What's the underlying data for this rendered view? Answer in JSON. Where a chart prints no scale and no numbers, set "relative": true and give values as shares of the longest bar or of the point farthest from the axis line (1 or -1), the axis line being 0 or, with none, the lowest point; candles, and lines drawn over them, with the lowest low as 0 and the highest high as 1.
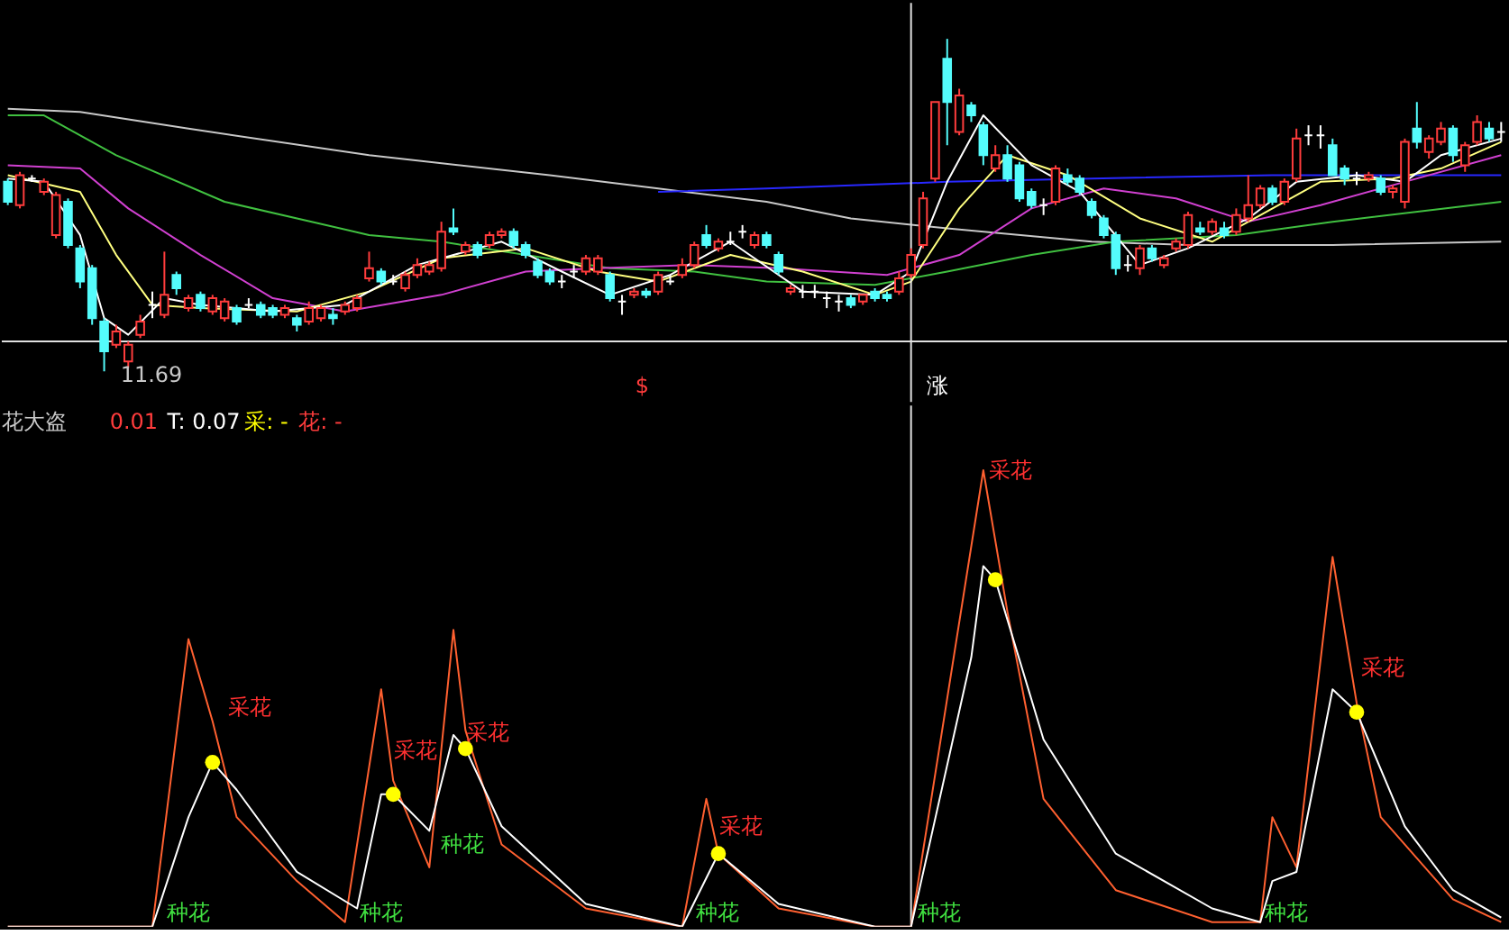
{
  "chart_data": [
    {
      "type": "candlestick",
      "relative": true,
      "categories": [
        null,
        null,
        null,
        null,
        null,
        null,
        null,
        null,
        null,
        null,
        null,
        null,
        null,
        null,
        null,
        null,
        null,
        null,
        null,
        null,
        null,
        null,
        null,
        null,
        null,
        null,
        null,
        null,
        null,
        null,
        null,
        null,
        null,
        null,
        null,
        null,
        null,
        null,
        null,
        null,
        null,
        null,
        null,
        null,
        null,
        null,
        null,
        null,
        null,
        null,
        null,
        null,
        null,
        null,
        null,
        null,
        null,
        null,
        null,
        null,
        null,
        null,
        null,
        null,
        null,
        null,
        null,
        null,
        null,
        null,
        null,
        null,
        null,
        null,
        null,
        null,
        null,
        null,
        null,
        null,
        null,
        null,
        null,
        null,
        null,
        null,
        null,
        null,
        null,
        null,
        null,
        null,
        null,
        null,
        null,
        null,
        null,
        null,
        null,
        null,
        null,
        null,
        null,
        null,
        null,
        null,
        null,
        null,
        null,
        null,
        null,
        null,
        null,
        null,
        null,
        null,
        null,
        null,
        null,
        null,
        null,
        null,
        null,
        null,
        null
      ],
      "ohlc": [
        [
          0.57,
          0.58,
          0.5,
          0.51
        ],
        [
          0.5,
          0.6,
          0.49,
          0.59
        ],
        [
          0.58,
          0.59,
          0.57,
          0.58
        ],
        [
          0.54,
          0.58,
          0.53,
          0.57
        ],
        [
          0.41,
          0.54,
          0.4,
          0.53
        ],
        [
          0.51,
          0.52,
          0.37,
          0.38
        ],
        [
          0.37,
          0.38,
          0.25,
          0.27
        ],
        [
          0.31,
          0.32,
          0.14,
          0.16
        ],
        [
          0.15,
          0.16,
          0.0,
          0.06
        ],
        [
          0.08,
          0.14,
          0.07,
          0.12
        ],
        [
          0.03,
          0.09,
          0.01,
          0.08
        ],
        [
          0.11,
          0.17,
          0.1,
          0.15
        ],
        [
          0.2,
          0.24,
          0.16,
          0.2
        ],
        [
          0.17,
          0.36,
          0.16,
          0.23
        ],
        [
          0.29,
          0.3,
          0.23,
          0.25
        ],
        [
          0.19,
          0.23,
          0.18,
          0.22
        ],
        [
          0.23,
          0.24,
          0.18,
          0.19
        ],
        [
          0.18,
          0.23,
          0.17,
          0.22
        ],
        [
          0.16,
          0.22,
          0.15,
          0.21
        ],
        [
          0.19,
          0.2,
          0.14,
          0.15
        ],
        [
          0.2,
          0.22,
          0.19,
          0.2
        ],
        [
          0.2,
          0.21,
          0.16,
          0.17
        ],
        [
          0.19,
          0.2,
          0.16,
          0.17
        ],
        [
          0.17,
          0.2,
          0.16,
          0.19
        ],
        [
          0.16,
          0.17,
          0.12,
          0.14
        ],
        [
          0.15,
          0.21,
          0.14,
          0.19
        ],
        [
          0.16,
          0.2,
          0.15,
          0.19
        ],
        [
          0.17,
          0.19,
          0.14,
          0.16
        ],
        [
          0.18,
          0.21,
          0.17,
          0.2
        ],
        [
          0.19,
          0.23,
          0.18,
          0.22
        ],
        [
          0.28,
          0.36,
          0.27,
          0.31
        ],
        [
          0.3,
          0.31,
          0.26,
          0.27
        ],
        [
          0.27,
          0.29,
          0.26,
          0.27
        ],
        [
          0.25,
          0.3,
          0.24,
          0.29
        ],
        [
          0.29,
          0.34,
          0.28,
          0.32
        ],
        [
          0.3,
          0.33,
          0.29,
          0.32
        ],
        [
          0.31,
          0.45,
          0.3,
          0.42
        ],
        [
          0.43,
          0.49,
          0.41,
          0.42
        ],
        [
          0.36,
          0.39,
          0.35,
          0.38
        ],
        [
          0.38,
          0.39,
          0.34,
          0.35
        ],
        [
          0.38,
          0.42,
          0.37,
          0.41
        ],
        [
          0.41,
          0.43,
          0.4,
          0.42
        ],
        [
          0.42,
          0.43,
          0.37,
          0.38
        ],
        [
          0.38,
          0.39,
          0.34,
          0.35
        ],
        [
          0.33,
          0.34,
          0.28,
          0.29
        ],
        [
          0.3,
          0.31,
          0.26,
          0.27
        ],
        [
          0.27,
          0.29,
          0.25,
          0.27
        ],
        [
          0.3,
          0.32,
          0.28,
          0.3
        ],
        [
          0.3,
          0.35,
          0.29,
          0.34
        ],
        [
          0.3,
          0.35,
          0.29,
          0.34
        ],
        [
          0.29,
          0.3,
          0.21,
          0.22
        ],
        [
          0.21,
          0.23,
          0.17,
          0.21
        ],
        [
          0.23,
          0.25,
          0.22,
          0.24
        ],
        [
          0.24,
          0.25,
          0.22,
          0.23
        ],
        [
          0.24,
          0.3,
          0.23,
          0.29
        ],
        [
          0.27,
          0.29,
          0.26,
          0.27
        ],
        [
          0.29,
          0.34,
          0.28,
          0.32
        ],
        [
          0.32,
          0.39,
          0.31,
          0.38
        ],
        [
          0.41,
          0.44,
          0.37,
          0.38
        ],
        [
          0.37,
          0.4,
          0.36,
          0.39
        ],
        [
          0.39,
          0.42,
          0.38,
          0.39
        ],
        [
          0.42,
          0.44,
          0.4,
          0.42
        ],
        [
          0.38,
          0.42,
          0.37,
          0.41
        ],
        [
          0.41,
          0.42,
          0.37,
          0.38
        ],
        [
          0.35,
          0.36,
          0.29,
          0.3
        ],
        [
          0.24,
          0.26,
          0.23,
          0.25
        ],
        [
          0.24,
          0.26,
          0.22,
          0.24
        ],
        [
          0.24,
          0.26,
          0.22,
          0.24
        ],
        [
          0.22,
          0.24,
          0.19,
          0.22
        ],
        [
          0.21,
          0.23,
          0.18,
          0.21
        ],
        [
          0.22,
          0.23,
          0.19,
          0.2
        ],
        [
          0.21,
          0.23,
          0.2,
          0.23
        ],
        [
          0.24,
          0.25,
          0.21,
          0.22
        ],
        [
          0.23,
          0.24,
          0.21,
          0.22
        ],
        [
          0.24,
          0.3,
          0.23,
          0.28
        ],
        [
          0.29,
          0.37,
          0.28,
          0.35
        ],
        [
          0.38,
          0.54,
          0.37,
          0.52
        ],
        [
          0.58,
          0.81,
          0.57,
          0.81
        ],
        [
          0.94,
          1.0,
          0.68,
          0.81
        ],
        [
          0.72,
          0.85,
          0.71,
          0.83
        ],
        [
          0.8,
          0.81,
          0.75,
          0.77
        ],
        [
          0.74,
          0.75,
          0.62,
          0.65
        ],
        [
          0.61,
          0.68,
          0.6,
          0.65
        ],
        [
          0.65,
          0.68,
          0.57,
          0.58
        ],
        [
          0.62,
          0.63,
          0.51,
          0.52
        ],
        [
          0.54,
          0.55,
          0.49,
          0.5
        ],
        [
          0.5,
          0.52,
          0.47,
          0.5
        ],
        [
          0.51,
          0.62,
          0.5,
          0.61
        ],
        [
          0.59,
          0.61,
          0.56,
          0.57
        ],
        [
          0.58,
          0.59,
          0.53,
          0.54
        ],
        [
          0.51,
          0.52,
          0.46,
          0.47
        ],
        [
          0.46,
          0.47,
          0.4,
          0.41
        ],
        [
          0.41,
          0.42,
          0.29,
          0.31
        ],
        [
          0.32,
          0.35,
          0.3,
          0.32
        ],
        [
          0.31,
          0.38,
          0.29,
          0.37
        ],
        [
          0.37,
          0.38,
          0.33,
          0.34
        ],
        [
          0.32,
          0.35,
          0.31,
          0.34
        ],
        [
          0.37,
          0.4,
          0.36,
          0.39
        ],
        [
          0.38,
          0.48,
          0.37,
          0.47
        ],
        [
          0.43,
          0.45,
          0.41,
          0.42
        ],
        [
          0.42,
          0.46,
          0.41,
          0.45
        ],
        [
          0.43,
          0.45,
          0.4,
          0.41
        ],
        [
          0.42,
          0.49,
          0.41,
          0.47
        ],
        [
          0.46,
          0.59,
          0.45,
          0.5
        ],
        [
          0.5,
          0.56,
          0.49,
          0.55
        ],
        [
          0.55,
          0.56,
          0.5,
          0.51
        ],
        [
          0.51,
          0.58,
          0.5,
          0.57
        ],
        [
          0.58,
          0.73,
          0.57,
          0.7
        ],
        [
          0.71,
          0.74,
          0.68,
          0.71
        ],
        [
          0.71,
          0.74,
          0.67,
          0.71
        ],
        [
          0.68,
          0.7,
          0.59,
          0.59
        ],
        [
          0.61,
          0.62,
          0.56,
          0.58
        ],
        [
          0.58,
          0.6,
          0.56,
          0.58
        ],
        [
          0.58,
          0.6,
          0.57,
          0.59
        ],
        [
          0.58,
          0.59,
          0.53,
          0.54
        ],
        [
          0.54,
          0.56,
          0.52,
          0.55
        ],
        [
          0.51,
          0.7,
          0.49,
          0.69
        ],
        [
          0.73,
          0.81,
          0.67,
          0.69
        ],
        [
          0.66,
          0.71,
          0.64,
          0.7
        ],
        [
          0.69,
          0.75,
          0.68,
          0.73
        ],
        [
          0.73,
          0.74,
          0.63,
          0.65
        ],
        [
          0.62,
          0.69,
          0.6,
          0.68
        ],
        [
          0.69,
          0.77,
          0.68,
          0.75
        ],
        [
          0.73,
          0.75,
          0.69,
          0.7
        ],
        [
          0.72,
          0.75,
          0.69,
          0.72
        ]
      ],
      "colors": [
        "#54fcfc",
        "#ff3c3c",
        "#ffffff",
        "#ff3c3c",
        "#ff3c3c",
        "#54fcfc",
        "#54fcfc",
        "#54fcfc",
        "#54fcfc",
        "#ff3c3c",
        "#ff3c3c",
        "#ff3c3c",
        "#ffffff",
        "#ff3c3c",
        "#54fcfc",
        "#ff3c3c",
        "#54fcfc",
        "#ff3c3c",
        "#ff3c3c",
        "#54fcfc",
        "#ffffff",
        "#54fcfc",
        "#54fcfc",
        "#ff3c3c",
        "#54fcfc",
        "#ff3c3c",
        "#ff3c3c",
        "#54fcfc",
        "#ff3c3c",
        "#ff3c3c",
        "#ff3c3c",
        "#54fcfc",
        "#ffffff",
        "#ff3c3c",
        "#ff3c3c",
        "#ff3c3c",
        "#ff3c3c",
        "#54fcfc",
        "#ff3c3c",
        "#54fcfc",
        "#ff3c3c",
        "#ff3c3c",
        "#54fcfc",
        "#54fcfc",
        "#54fcfc",
        "#54fcfc",
        "#ffffff",
        "#ffffff",
        "#ff3c3c",
        "#ff3c3c",
        "#54fcfc",
        "#ffffff",
        "#ff3c3c",
        "#54fcfc",
        "#ff3c3c",
        "#ffffff",
        "#ff3c3c",
        "#ff3c3c",
        "#54fcfc",
        "#ff3c3c",
        "#ffffff",
        "#ffffff",
        "#ff3c3c",
        "#54fcfc",
        "#54fcfc",
        "#ff3c3c",
        "#ffffff",
        "#ffffff",
        "#ffffff",
        "#ffffff",
        "#54fcfc",
        "#ff3c3c",
        "#54fcfc",
        "#54fcfc",
        "#ff3c3c",
        "#ff3c3c",
        "#ff3c3c",
        "#ff3c3c",
        "#54fcfc",
        "#ff3c3c",
        "#54fcfc",
        "#54fcfc",
        "#ff3c3c",
        "#54fcfc",
        "#54fcfc",
        "#54fcfc",
        "#ffffff",
        "#ff3c3c",
        "#54fcfc",
        "#54fcfc",
        "#54fcfc",
        "#54fcfc",
        "#54fcfc",
        "#ffffff",
        "#ff3c3c",
        "#54fcfc",
        "#ff3c3c",
        "#ff3c3c",
        "#ff3c3c",
        "#54fcfc",
        "#ff3c3c",
        "#54fcfc",
        "#ff3c3c",
        "#ff3c3c",
        "#ff3c3c",
        "#54fcfc",
        "#ff3c3c",
        "#ff3c3c",
        "#ffffff",
        "#ffffff",
        "#54fcfc",
        "#54fcfc",
        "#ffffff",
        "#ff3c3c",
        "#54fcfc",
        "#ff3c3c",
        "#ff3c3c",
        "#54fcfc",
        "#ff3c3c",
        "#ff3c3c",
        "#54fcfc",
        "#ff3c3c",
        "#ff3c3c",
        "#54fcfc",
        "#ffffff"
      ],
      "series": [
        {
          "type": "line",
          "color": "#c8c8c8",
          "values": [
            0.79,
            null,
            null,
            null,
            null,
            null,
            0.78,
            null,
            null,
            null,
            null,
            null,
            null,
            null,
            null,
            0.73,
            null,
            null,
            null,
            null,
            null,
            null,
            null,
            null,
            null,
            null,
            null,
            null,
            null,
            null,
            0.65,
            null,
            null,
            null,
            null,
            null,
            null,
            null,
            null,
            null,
            null,
            null,
            null,
            null,
            null,
            0.59,
            null,
            null,
            null,
            null,
            null,
            null,
            null,
            null,
            0.55,
            null,
            null,
            null,
            null,
            null,
            null,
            null,
            null,
            0.51,
            null,
            null,
            null,
            null,
            null,
            null,
            0.46,
            null,
            null,
            null,
            null,
            null,
            null,
            null,
            0.43,
            null,
            null,
            null,
            null,
            null,
            null,
            null,
            null,
            null,
            null,
            null,
            0.39,
            null,
            null,
            null,
            null,
            null,
            null,
            null,
            0.38,
            null,
            null,
            null,
            null,
            null,
            null,
            null,
            null,
            null,
            null,
            null,
            0.38,
            null,
            null,
            null,
            null,
            null,
            null,
            null,
            null,
            null,
            null,
            null,
            null,
            null,
            0.39
          ]
        },
        {
          "type": "line",
          "color": "#2828ff",
          "values": [
            null,
            null,
            null,
            null,
            null,
            null,
            null,
            null,
            null,
            null,
            null,
            null,
            null,
            null,
            null,
            null,
            null,
            null,
            null,
            null,
            null,
            null,
            null,
            null,
            null,
            null,
            null,
            null,
            null,
            null,
            null,
            null,
            null,
            null,
            null,
            null,
            null,
            null,
            null,
            null,
            null,
            null,
            null,
            null,
            null,
            null,
            null,
            null,
            null,
            null,
            null,
            null,
            null,
            null,
            0.54,
            null,
            null,
            null,
            null,
            null,
            null,
            null,
            null,
            0.55,
            null,
            null,
            null,
            null,
            null,
            null,
            null,
            null,
            null,
            null,
            null,
            null,
            null,
            null,
            0.57,
            null,
            null,
            null,
            null,
            null,
            null,
            null,
            null,
            null,
            null,
            null,
            0.58,
            null,
            null,
            null,
            null,
            null,
            null,
            null,
            null,
            null,
            null,
            null,
            null,
            null,
            null,
            0.59,
            null,
            null,
            null,
            null,
            null,
            null,
            null,
            null,
            null,
            null,
            null,
            null,
            null,
            null,
            null,
            null,
            null,
            null,
            0.59
          ]
        },
        {
          "type": "line",
          "color": "#40c040",
          "values": [
            0.77,
            null,
            null,
            0.77,
            null,
            null,
            null,
            null,
            null,
            0.65,
            null,
            null,
            null,
            null,
            null,
            null,
            null,
            null,
            0.51,
            null,
            null,
            null,
            null,
            null,
            null,
            null,
            null,
            null,
            null,
            null,
            0.41,
            null,
            null,
            null,
            null,
            null,
            0.39,
            null,
            null,
            null,
            null,
            null,
            null,
            0.35,
            null,
            null,
            null,
            null,
            null,
            null,
            0.31,
            null,
            null,
            null,
            null,
            null,
            null,
            0.3,
            null,
            null,
            null,
            null,
            null,
            0.27,
            null,
            null,
            null,
            null,
            null,
            null,
            null,
            null,
            0.26,
            null,
            null,
            null,
            null,
            null,
            0.3,
            null,
            null,
            null,
            null,
            null,
            null,
            0.35,
            null,
            null,
            null,
            null,
            null,
            null,
            0.39,
            null,
            null,
            null,
            null,
            null,
            null,
            null,
            null,
            null,
            0.41,
            null,
            null,
            null,
            null,
            null,
            null,
            null,
            0.45,
            null,
            null,
            null,
            null,
            null,
            null,
            null,
            null,
            null,
            null,
            null,
            null,
            null,
            0.51
          ]
        },
        {
          "type": "line",
          "color": "#d040d0",
          "values": [
            0.62,
            null,
            null,
            null,
            null,
            null,
            0.61,
            null,
            null,
            null,
            0.49,
            null,
            null,
            null,
            null,
            null,
            0.35,
            null,
            null,
            null,
            null,
            null,
            0.22,
            null,
            null,
            null,
            null,
            null,
            0.18,
            null,
            null,
            null,
            null,
            null,
            null,
            null,
            0.23,
            null,
            null,
            null,
            null,
            null,
            null,
            0.3,
            null,
            null,
            null,
            null,
            null,
            0.31,
            null,
            null,
            null,
            null,
            null,
            null,
            null,
            0.32,
            null,
            null,
            null,
            null,
            null,
            null,
            0.31,
            null,
            null,
            null,
            null,
            null,
            null,
            null,
            null,
            0.29,
            null,
            null,
            null,
            null,
            null,
            0.35,
            null,
            null,
            null,
            null,
            null,
            0.49,
            null,
            null,
            null,
            null,
            null,
            0.55,
            null,
            null,
            null,
            null,
            null,
            0.52,
            null,
            null,
            null,
            null,
            null,
            0.45,
            null,
            null,
            null,
            null,
            null,
            0.5,
            null,
            null,
            null,
            null,
            null,
            null,
            0.57,
            null,
            null,
            null,
            null,
            null,
            null,
            null,
            0.65
          ]
        },
        {
          "type": "line",
          "color": "#ffff80",
          "values": [
            0.59,
            null,
            null,
            null,
            null,
            null,
            0.54,
            null,
            null,
            0.35,
            null,
            null,
            0.2,
            null,
            null,
            null,
            0.19,
            null,
            null,
            null,
            null,
            null,
            null,
            null,
            0.18,
            null,
            null,
            null,
            null,
            null,
            0.24,
            null,
            null,
            null,
            null,
            null,
            0.34,
            null,
            null,
            null,
            null,
            null,
            null,
            0.37,
            null,
            null,
            null,
            null,
            null,
            0.3,
            null,
            null,
            null,
            null,
            0.27,
            null,
            null,
            null,
            null,
            null,
            0.35,
            null,
            null,
            null,
            null,
            null,
            0.3,
            null,
            null,
            null,
            null,
            null,
            0.23,
            null,
            null,
            0.27,
            null,
            null,
            null,
            0.49,
            null,
            null,
            null,
            0.65,
            null,
            null,
            null,
            null,
            0.59,
            null,
            null,
            null,
            null,
            null,
            0.46,
            null,
            null,
            null,
            null,
            null,
            0.39,
            null,
            null,
            null,
            0.47,
            null,
            null,
            null,
            null,
            0.57,
            null,
            null,
            null,
            null,
            null,
            0.58,
            null,
            null,
            null,
            0.61,
            null,
            null,
            null,
            null,
            0.69
          ]
        },
        {
          "type": "line",
          "color": "#ffffff",
          "values": [
            0.58,
            null,
            null,
            0.57,
            null,
            null,
            0.41,
            null,
            0.16,
            null,
            0.11,
            null,
            null,
            0.22,
            null,
            null,
            0.2,
            null,
            null,
            null,
            null,
            null,
            0.18,
            null,
            null,
            null,
            null,
            null,
            0.2,
            null,
            null,
            null,
            null,
            null,
            0.32,
            null,
            null,
            null,
            null,
            null,
            null,
            0.39,
            null,
            null,
            null,
            null,
            0.3,
            null,
            null,
            null,
            0.23,
            null,
            null,
            null,
            null,
            0.29,
            null,
            null,
            null,
            null,
            0.39,
            null,
            null,
            null,
            null,
            null,
            0.24,
            null,
            null,
            null,
            null,
            null,
            0.23,
            null,
            null,
            0.3,
            null,
            null,
            0.57,
            null,
            null,
            0.77,
            null,
            null,
            null,
            0.62,
            null,
            null,
            null,
            0.54,
            null,
            null,
            null,
            null,
            0.32,
            null,
            null,
            null,
            0.37,
            null,
            null,
            null,
            null,
            0.46,
            null,
            null,
            null,
            0.57,
            null,
            null,
            null,
            null,
            0.59,
            null,
            null,
            null,
            0.57,
            null,
            null,
            0.65,
            null,
            null,
            null,
            null,
            0.7
          ]
        }
      ],
      "ref_lines": [
        {
          "axis": "y",
          "value": 0.09,
          "color": "#e0e0e0"
        }
      ],
      "annotations": [
        "11.69",
        "$",
        "涨"
      ]
    },
    {
      "type": "line",
      "title": "花大盗",
      "relative": true,
      "categories": [
        null,
        null,
        null,
        null,
        null,
        null,
        null,
        null,
        null,
        null,
        null,
        null,
        null,
        null,
        null,
        null,
        null,
        null,
        null,
        null,
        null,
        null,
        null,
        null,
        null,
        null,
        null,
        null,
        null,
        null,
        null,
        null,
        null,
        null,
        null,
        null,
        null,
        null,
        null,
        null,
        null,
        null,
        null,
        null,
        null,
        null,
        null,
        null,
        null,
        null,
        null,
        null,
        null,
        null,
        null,
        null,
        null,
        null,
        null,
        null,
        null,
        null,
        null,
        null,
        null,
        null,
        null,
        null,
        null,
        null,
        null,
        null,
        null,
        null,
        null,
        null,
        null,
        null,
        null,
        null,
        null,
        null,
        null,
        null,
        null,
        null,
        null,
        null,
        null,
        null,
        null,
        null,
        null,
        null,
        null,
        null,
        null,
        null,
        null,
        null,
        null,
        null,
        null,
        null,
        null,
        null,
        null,
        null,
        null,
        null,
        null,
        null,
        null,
        null,
        null,
        null,
        null,
        null,
        null,
        null,
        null,
        null,
        null,
        null,
        null
      ],
      "series": [
        {
          "type": "line",
          "color": "#ff6030",
          "values": [
            0,
            null,
            null,
            null,
            null,
            null,
            null,
            null,
            null,
            null,
            null,
            null,
            0,
            null,
            null,
            0.63,
            null,
            0.45,
            null,
            0.24,
            null,
            null,
            null,
            null,
            0.1,
            null,
            null,
            null,
            0.01,
            null,
            null,
            0.52,
            0.32,
            null,
            null,
            0.13,
            null,
            0.65,
            0.43,
            null,
            null,
            0.18,
            null,
            null,
            null,
            null,
            null,
            null,
            0.04,
            null,
            null,
            null,
            null,
            null,
            null,
            null,
            0,
            null,
            0.28,
            0.16,
            null,
            null,
            null,
            null,
            0.04,
            null,
            null,
            null,
            null,
            null,
            null,
            null,
            0,
            null,
            null,
            0,
            null,
            null,
            null,
            null,
            null,
            1,
            null,
            0.69,
            null,
            null,
            0.28,
            null,
            null,
            null,
            null,
            null,
            0.08,
            null,
            null,
            null,
            null,
            null,
            null,
            null,
            0.01,
            null,
            null,
            null,
            0.01,
            0.24,
            null,
            0.13,
            null,
            null,
            0.81,
            null,
            0.49,
            null,
            0.24,
            null,
            null,
            null,
            null,
            null,
            0.06,
            null,
            null,
            null,
            0.01
          ]
        },
        {
          "type": "line",
          "color": "#ffffff",
          "values": [
            0,
            null,
            null,
            null,
            null,
            null,
            null,
            null,
            null,
            null,
            null,
            null,
            0,
            null,
            null,
            0.24,
            null,
            0.36,
            null,
            0.3,
            null,
            null,
            null,
            null,
            0.12,
            null,
            null,
            null,
            null,
            0.04,
            null,
            0.29,
            0.29,
            null,
            null,
            0.21,
            null,
            0.42,
            0.39,
            null,
            null,
            0.22,
            null,
            null,
            null,
            null,
            null,
            null,
            0.05,
            null,
            null,
            null,
            null,
            null,
            null,
            null,
            0,
            null,
            null,
            0.16,
            null,
            null,
            null,
            null,
            0.05,
            null,
            null,
            null,
            null,
            null,
            null,
            null,
            0,
            null,
            null,
            0,
            null,
            null,
            null,
            null,
            0.59,
            0.79,
            0.76,
            null,
            null,
            null,
            0.41,
            null,
            null,
            null,
            null,
            null,
            0.16,
            null,
            null,
            null,
            null,
            null,
            null,
            null,
            0.04,
            null,
            null,
            null,
            0.01,
            0.1,
            null,
            0.12,
            null,
            null,
            0.52,
            null,
            0.47,
            null,
            null,
            null,
            0.22,
            null,
            null,
            null,
            0.08,
            null,
            null,
            null,
            0.02
          ]
        },
        {
          "type": "scatter",
          "color": "#ffff00",
          "marker": "circle",
          "values": [
            null,
            null,
            null,
            null,
            null,
            null,
            null,
            null,
            null,
            null,
            null,
            null,
            null,
            null,
            null,
            null,
            null,
            0.36,
            null,
            null,
            null,
            null,
            null,
            null,
            null,
            null,
            null,
            null,
            null,
            null,
            null,
            null,
            0.29,
            null,
            null,
            null,
            null,
            null,
            0.39,
            null,
            null,
            null,
            null,
            null,
            null,
            null,
            null,
            null,
            null,
            null,
            null,
            null,
            null,
            null,
            null,
            null,
            null,
            null,
            null,
            0.16,
            null,
            null,
            null,
            null,
            null,
            null,
            null,
            null,
            null,
            null,
            null,
            null,
            null,
            null,
            null,
            null,
            null,
            null,
            null,
            null,
            null,
            null,
            0.76,
            null,
            null,
            null,
            null,
            null,
            null,
            null,
            null,
            null,
            null,
            null,
            null,
            null,
            null,
            null,
            null,
            null,
            null,
            null,
            null,
            null,
            null,
            null,
            null,
            null,
            null,
            null,
            null,
            null,
            0.47,
            null,
            null,
            null,
            null,
            null,
            null,
            null,
            null,
            null,
            null,
            null,
            null
          ]
        }
      ],
      "annotations": [
        "0.01",
        "T: 0.07",
        "采: -",
        "花: -",
        "采花",
        "采花",
        "采花",
        "采花",
        "采花",
        "采花",
        "种花",
        "种花",
        "种花",
        "种花",
        "种花",
        "种花"
      ]
    }
  ]
}
